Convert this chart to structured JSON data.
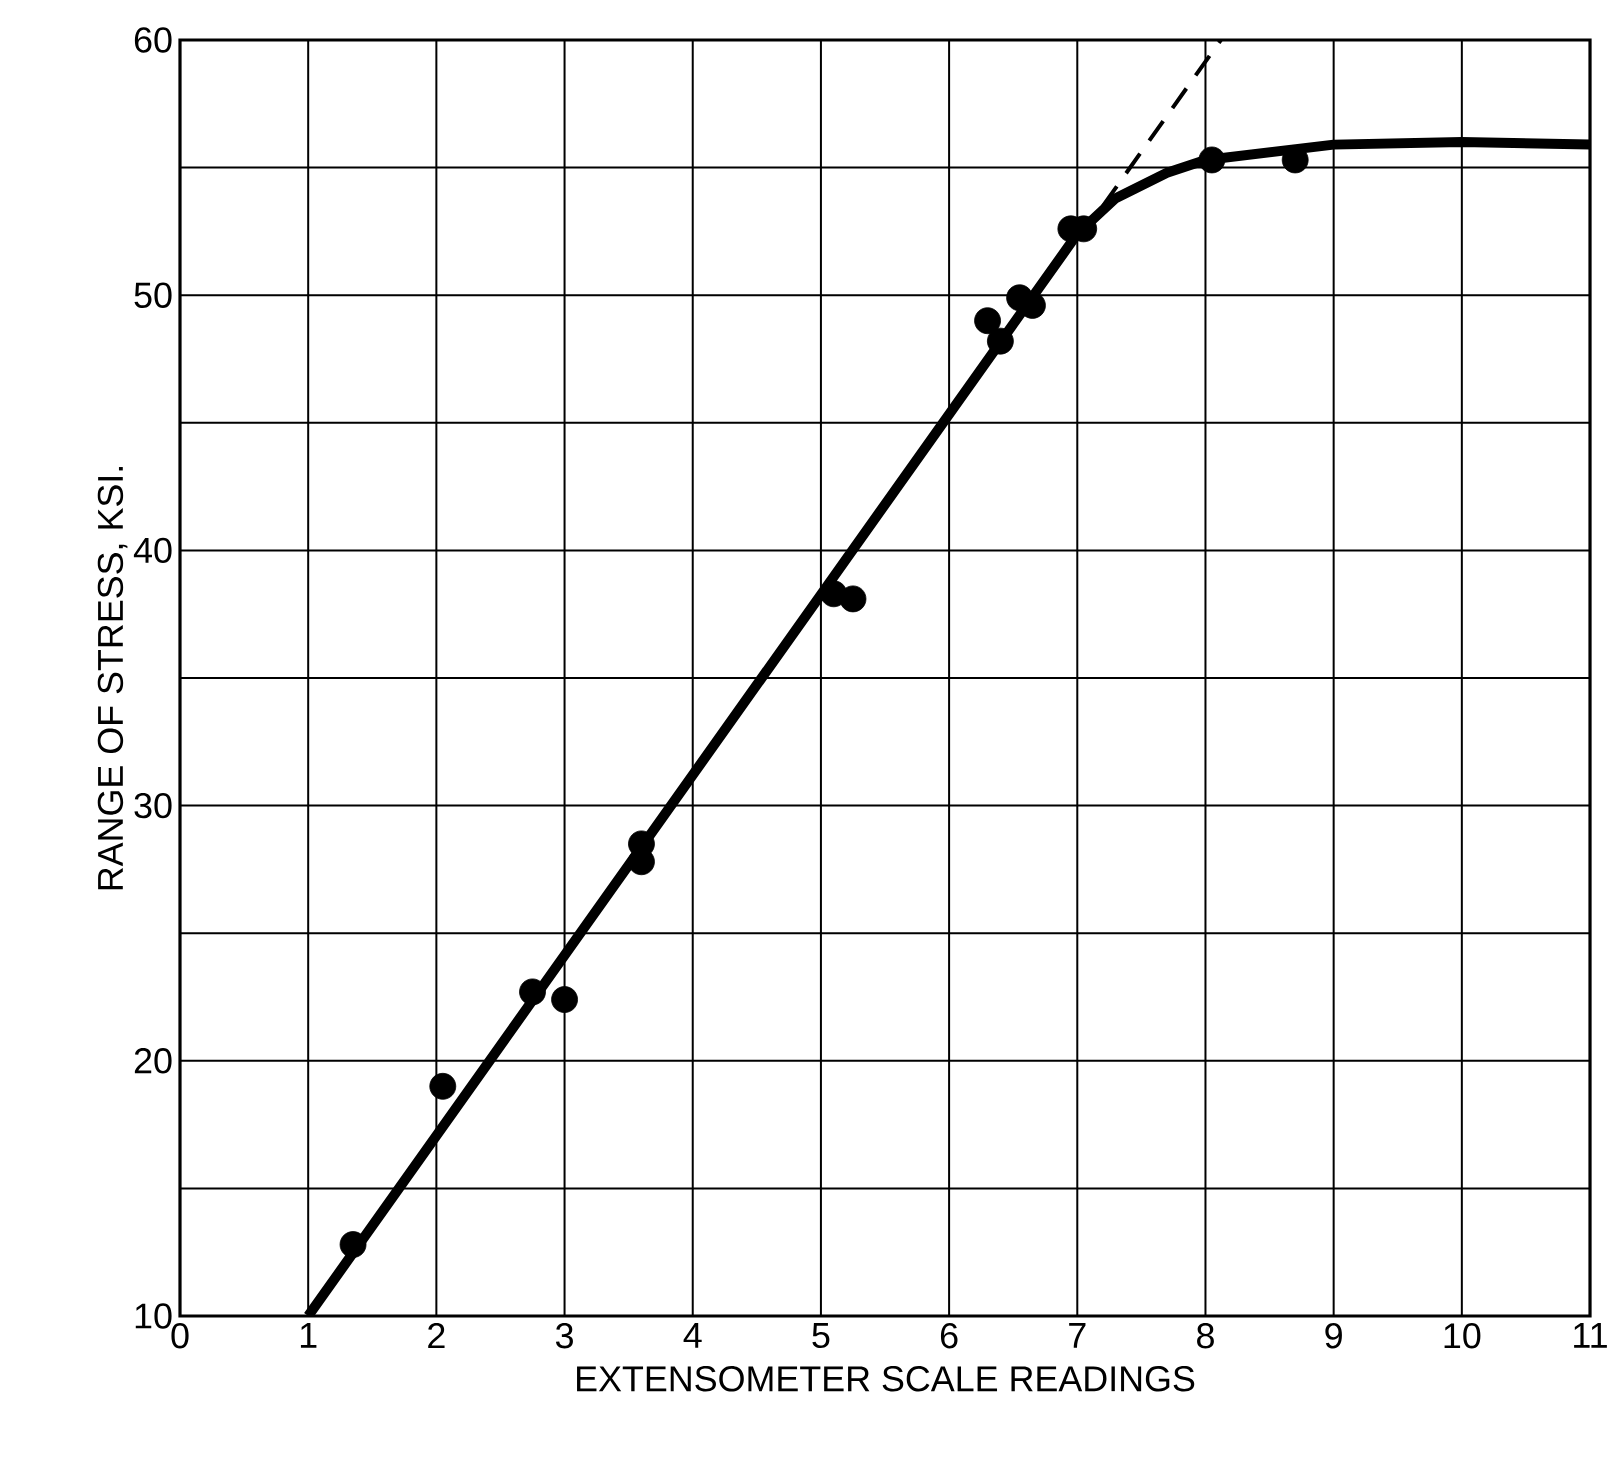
{
  "chart_data": {
    "type": "scatter",
    "xlabel": "EXTENSOMETER SCALE READINGS",
    "ylabel": "RANGE OF STRESS, KSI.",
    "xlim": [
      0,
      11
    ],
    "ylim": [
      10,
      60
    ],
    "xticks": [
      0,
      1,
      2,
      3,
      4,
      5,
      6,
      7,
      8,
      9,
      10,
      11
    ],
    "yticks": [
      10,
      {
        "value": 15,
        "label": null
      },
      20,
      {
        "value": 25,
        "label": null
      },
      30,
      {
        "value": 35,
        "label": null
      },
      40,
      {
        "value": 45,
        "label": null
      },
      50,
      {
        "value": 55,
        "label": null
      },
      60
    ],
    "grid": true,
    "series": [
      {
        "color": "#000000",
        "marker": "circle",
        "x": [
          1.35,
          2.05,
          2.75,
          3.0,
          3.6,
          3.6,
          5.1,
          5.25,
          6.3,
          6.4,
          6.55,
          6.65,
          6.95,
          7.05,
          8.05,
          8.7
        ],
        "values": [
          12.8,
          19.0,
          22.7,
          22.4,
          27.8,
          28.5,
          38.3,
          38.1,
          49.0,
          48.2,
          49.9,
          49.6,
          52.6,
          52.6,
          55.3,
          55.3
        ]
      },
      {
        "type": "line",
        "color": "#000000",
        "line_style": "solid",
        "marker": "none",
        "x": [
          1.0,
          7.0,
          7.3,
          7.7,
          8.0,
          8.5,
          9.0,
          10.0,
          11.0
        ],
        "values": [
          10.0,
          52.4,
          53.8,
          54.8,
          55.3,
          55.6,
          55.9,
          56.0,
          55.9
        ]
      },
      {
        "type": "line",
        "color": "#000000",
        "line_style": "dashed",
        "marker": "none",
        "x": [
          7.2,
          8.12
        ],
        "values": [
          53.5,
          60.0
        ]
      }
    ]
  }
}
